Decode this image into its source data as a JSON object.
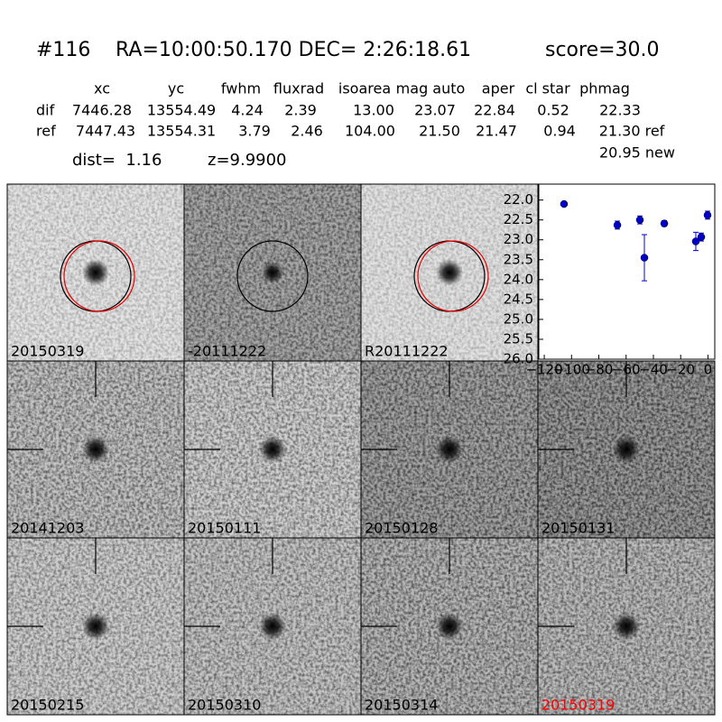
{
  "header": {
    "object": "#116",
    "coords": "RA=10:00:50.170 DEC= 2:26:18.61",
    "score": "score=30.0"
  },
  "table": {
    "columns": [
      "xc",
      "yc",
      "fwhm",
      "fluxrad",
      "isoarea",
      "mag auto",
      "aper",
      "cl star",
      "phmag"
    ],
    "rows": [
      [
        "dif",
        "7446.28",
        "13554.49",
        "4.24",
        "2.39",
        "13.00",
        "23.07",
        "22.84",
        "0.52",
        "22.33"
      ],
      [
        "ref",
        "7447.43",
        "13554.31",
        "3.79",
        "2.46",
        "104.00",
        "21.50",
        "21.47",
        "0.94",
        "21.30 ref"
      ]
    ],
    "extra": "20.95 new"
  },
  "dist": "dist=  1.16",
  "z": "z=9.9900",
  "panels": [
    "20150319",
    "-20111222",
    "R20111222",
    "20141203",
    "20150111",
    "20150128",
    "20150131",
    "20150215",
    "20150310",
    "20150314",
    "20150319"
  ],
  "chart_data": {
    "type": "scatter",
    "x": [
      -105.5,
      -66.4,
      -49.9,
      -46.6,
      -32.0,
      -8.9,
      -4.9,
      -0.3
    ],
    "values": [
      22.1,
      22.63,
      22.5,
      23.45,
      22.59,
      23.04,
      22.93,
      22.38
    ],
    "errors": [
      0.05,
      0.1,
      0.1,
      0.58,
      0.07,
      0.23,
      0.1,
      0.1
    ],
    "color": "#0000cc",
    "xlim": [
      -124,
      5
    ],
    "ylim": [
      26.0,
      21.6
    ],
    "xticks": [
      {
        "value": -120,
        "label": "−120"
      },
      {
        "value": -100,
        "label": "−100"
      },
      {
        "value": -80,
        "label": "−80"
      },
      {
        "value": -60,
        "label": "−60"
      },
      {
        "value": -40,
        "label": "−40"
      },
      {
        "value": -20,
        "label": "−20"
      },
      0
    ],
    "yticks": [
      {
        "value": 22,
        "label": "22.0"
      },
      22.5,
      {
        "value": 23,
        "label": "23.0"
      },
      23.5,
      {
        "value": 24,
        "label": "24.0"
      },
      24.5,
      {
        "value": 25,
        "label": "25.0"
      },
      25.5,
      {
        "value": 26,
        "label": "26.0"
      }
    ]
  }
}
